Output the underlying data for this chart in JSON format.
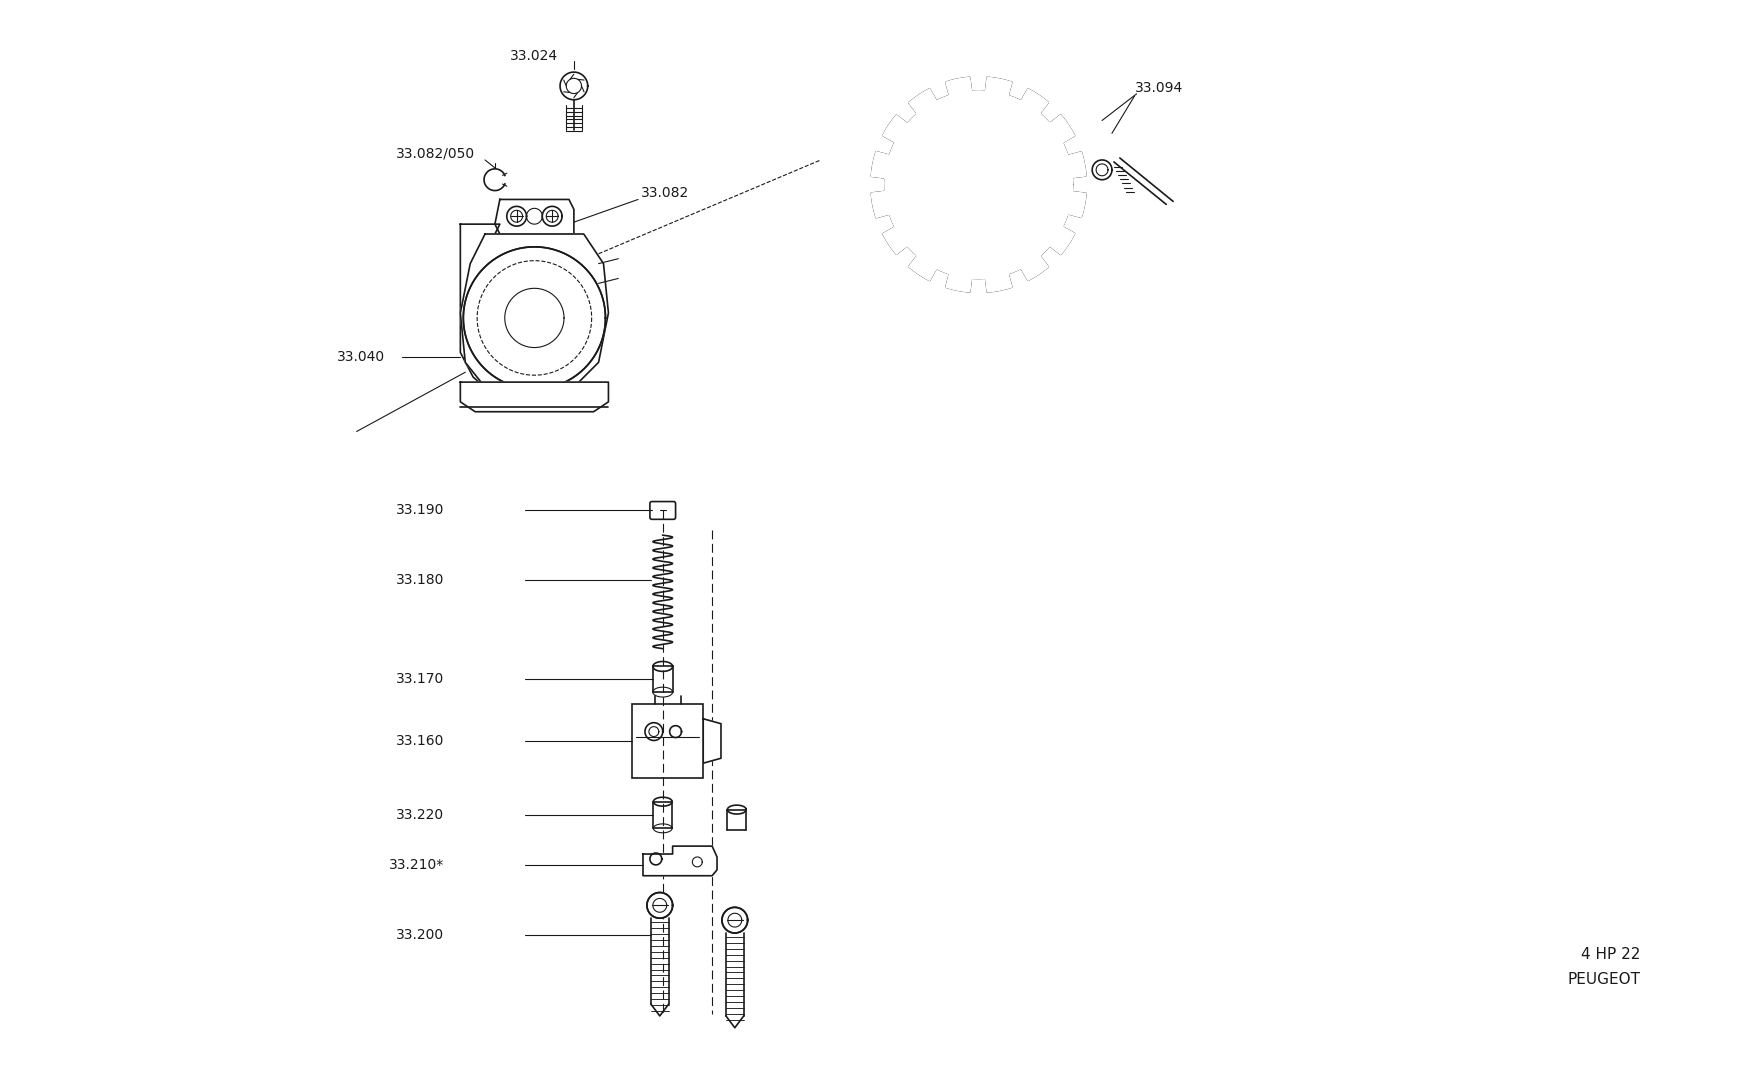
{
  "bg_color": "#ffffff",
  "line_color": "#1a1a1a",
  "text_color": "#1a1a1a",
  "fig_width": 17.5,
  "fig_height": 10.9,
  "bottom_right_text1": "4 HP 22",
  "bottom_right_text2": "PEUGEOT"
}
